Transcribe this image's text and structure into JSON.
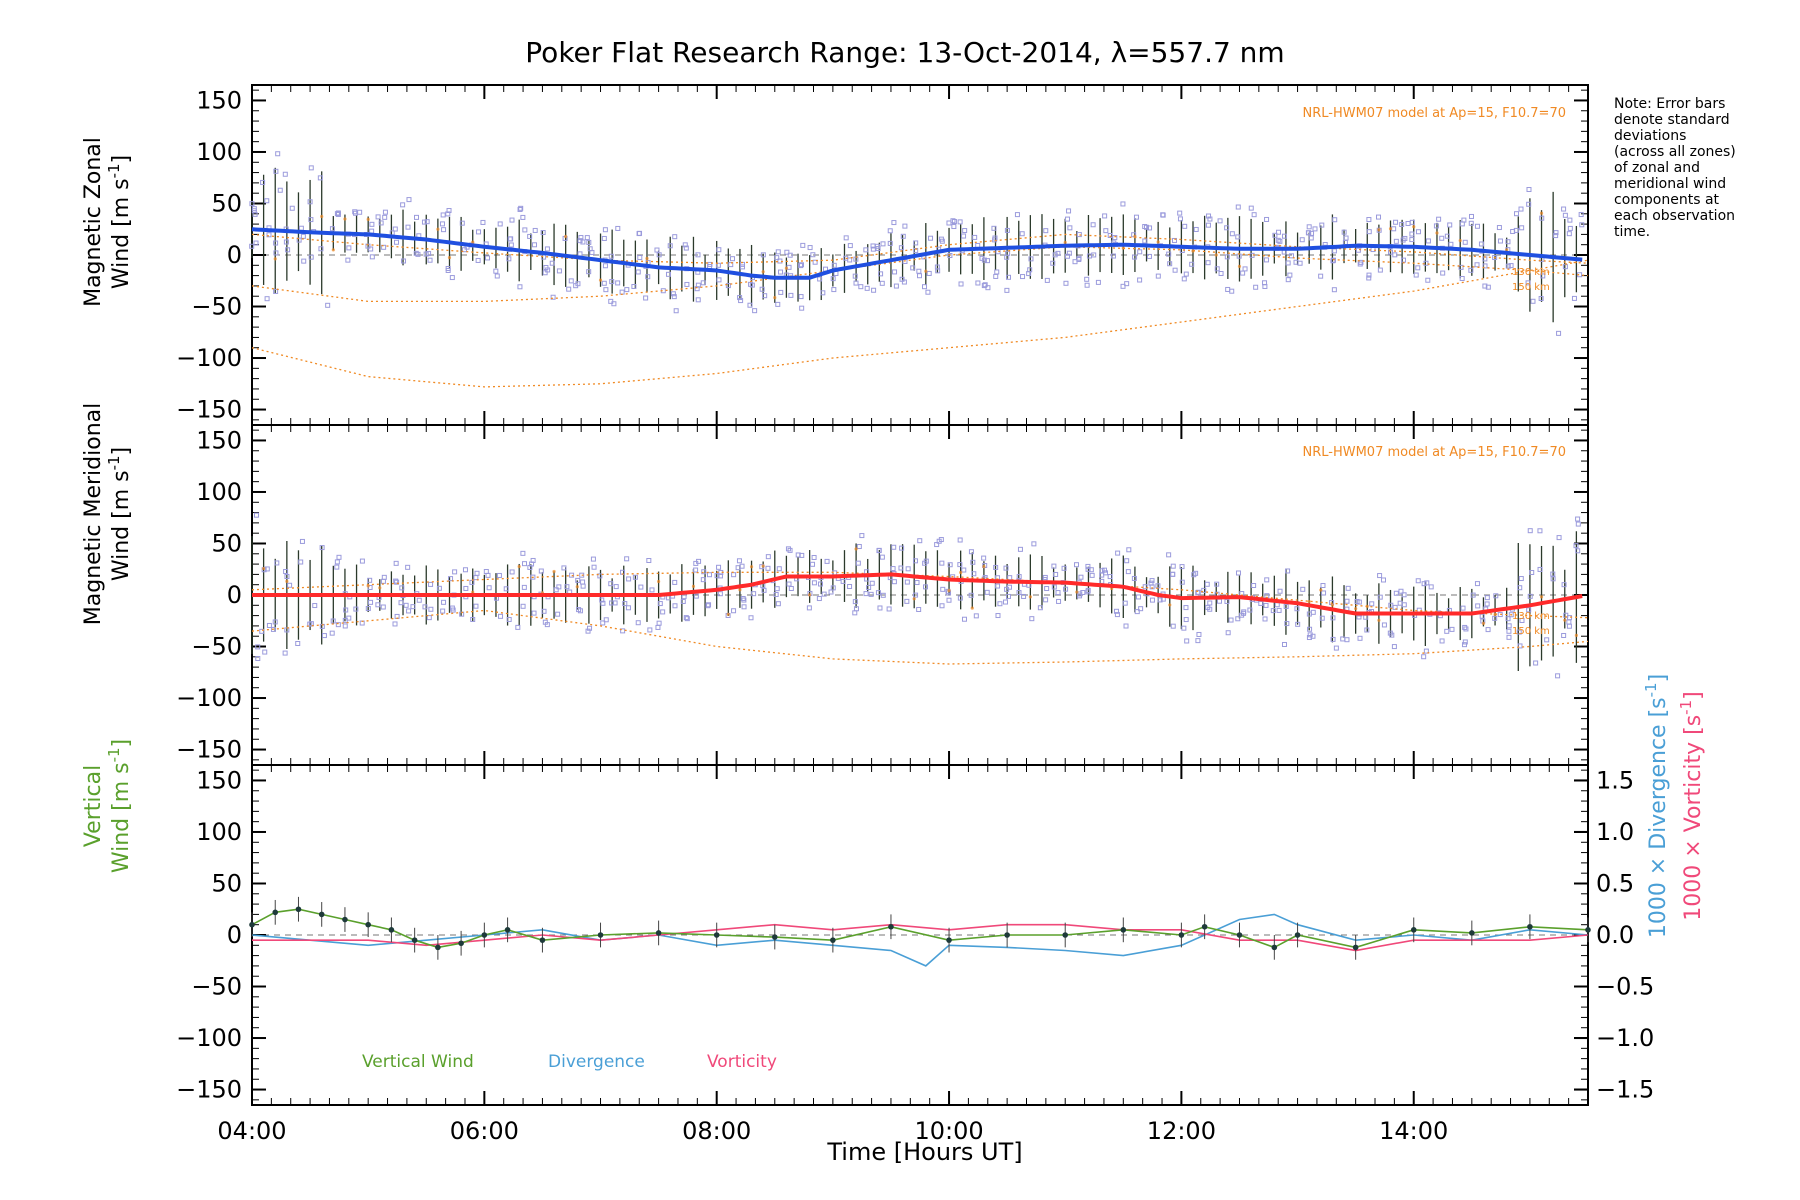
{
  "title": "Poker Flat Research Range: 13-Oct-2014, λ=557.7 nm",
  "note": [
    "Note: Error bars",
    "denote standard",
    "deviations",
    "(across all zones)",
    "of zonal and",
    "meridional wind",
    "components at",
    "each observation",
    "time."
  ],
  "model_label": "NRL-HWM07 model at Ap=15, F10.7=70",
  "altitude_labels": [
    "130 km",
    "150 km"
  ],
  "x_axis": {
    "label": "Time [Hours UT]",
    "ticks": [
      "04:00",
      "06:00",
      "08:00",
      "10:00",
      "12:00",
      "14:00"
    ]
  },
  "y_ticks": [
    "150",
    "100",
    "50",
    "0",
    "−50",
    "−100",
    "−150"
  ],
  "right_ticks": [
    "1.5",
    "1.0",
    "0.5",
    "0.0",
    "−0.5",
    "−1.0",
    "−1.5"
  ],
  "panels": {
    "zonal": {
      "ylabel_line1": "Magnetic Zonal",
      "ylabel_line2_pre": "Wind [m s",
      "ylabel_sup": "-1",
      "ylabel_post": "]"
    },
    "meridional": {
      "ylabel_line1": "Magnetic Meridional",
      "ylabel_line2_pre": "Wind [m s",
      "ylabel_sup": "-1",
      "ylabel_post": "]"
    },
    "vertical": {
      "ylabel_line1": "Vertical",
      "ylabel_line2_pre": "Wind [m s",
      "ylabel_sup": "-1",
      "ylabel_post": "]",
      "right_label1_pre": "1000 × Divergence [s",
      "right_label2_pre": "1000 × Vorticity [s",
      "right_sup": "-1",
      "right_post": "]"
    }
  },
  "legend": [
    "Vertical Wind",
    "Divergence",
    "Vorticity"
  ],
  "colors": {
    "zonal": "#1f4fe0",
    "meridional": "#ff2a2a",
    "vertical": "#5aa02c",
    "divergence": "#4a9fd6",
    "vorticity": "#f0497a",
    "model": "#f08a24",
    "samples": "#9b9bdc",
    "errorbar": "#2b3a2b"
  },
  "chart_data": [
    {
      "type": "line",
      "panel": "zonal",
      "xlabel": "",
      "ylabel": "Magnetic Zonal Wind [m s-1]",
      "xlim": [
        4.0,
        15.5
      ],
      "ylim": [
        -165,
        165
      ],
      "series": [
        {
          "role": "measured",
          "x": [
            4.0,
            4.5,
            5.0,
            5.5,
            6.0,
            6.5,
            7.0,
            7.5,
            8.0,
            8.3,
            8.5,
            8.8,
            9.0,
            9.5,
            10.0,
            10.5,
            11.0,
            11.5,
            12.0,
            12.5,
            13.0,
            13.5,
            14.0,
            14.5,
            15.0,
            15.5
          ],
          "y": [
            25,
            22,
            20,
            15,
            8,
            2,
            -5,
            -12,
            -15,
            -20,
            -22,
            -22,
            -15,
            -5,
            5,
            7,
            9,
            10,
            8,
            6,
            6,
            9,
            8,
            5,
            0,
            -5
          ]
        },
        {
          "role": "model",
          "x": [
            4.0,
            5.0,
            6.0,
            7.0,
            8.0,
            9.0,
            10.0,
            11.0,
            12.0,
            13.0,
            14.0,
            15.0,
            15.5
          ],
          "y": [
            20,
            10,
            2,
            -5,
            -8,
            -5,
            10,
            20,
            15,
            8,
            3,
            -5,
            -8
          ]
        },
        {
          "role": "model",
          "x": [
            4.0,
            5.0,
            6.0,
            7.0,
            8.0,
            9.0,
            10.0,
            11.0,
            12.0,
            13.0,
            14.0,
            15.0,
            15.5
          ],
          "y": [
            -30,
            -45,
            -45,
            -40,
            -30,
            -15,
            0,
            8,
            5,
            -3,
            -8,
            -15,
            -20
          ]
        },
        {
          "role": "model",
          "x": [
            4.0,
            5.0,
            6.0,
            7.0,
            8.0,
            9.0,
            10.0,
            11.0,
            12.0,
            13.0,
            14.0,
            15.0,
            15.5
          ],
          "y": [
            -90,
            -118,
            -128,
            -125,
            -115,
            -100,
            -90,
            -80,
            -65,
            -50,
            -35,
            -15,
            -5
          ]
        }
      ]
    },
    {
      "type": "line",
      "panel": "meridional",
      "xlabel": "",
      "ylabel": "Magnetic Meridional Wind [m s-1]",
      "xlim": [
        4.0,
        15.5
      ],
      "ylim": [
        -165,
        165
      ],
      "series": [
        {
          "role": "measured",
          "x": [
            4.0,
            4.5,
            5.0,
            5.5,
            6.0,
            6.5,
            7.0,
            7.5,
            8.0,
            8.3,
            8.6,
            9.0,
            9.5,
            10.0,
            10.5,
            11.0,
            11.5,
            11.8,
            12.0,
            12.5,
            13.0,
            13.5,
            14.0,
            14.5,
            15.0,
            15.5
          ],
          "y": [
            0,
            0,
            0,
            0,
            0,
            0,
            0,
            0,
            5,
            10,
            18,
            18,
            20,
            15,
            13,
            12,
            8,
            0,
            -3,
            -2,
            -8,
            -18,
            -18,
            -18,
            -10,
            0
          ]
        },
        {
          "role": "model",
          "x": [
            4.0,
            5.0,
            6.0,
            7.0,
            8.0,
            9.0,
            10.0,
            11.0,
            12.0,
            13.0,
            14.0,
            15.0,
            15.5
          ],
          "y": [
            5,
            10,
            15,
            20,
            22,
            22,
            18,
            12,
            5,
            -5,
            -15,
            -20,
            -22
          ]
        },
        {
          "role": "model",
          "x": [
            4.0,
            5.0,
            6.0,
            7.0,
            8.0,
            9.0,
            10.0,
            11.0,
            12.0,
            13.0,
            14.0,
            15.0,
            15.5
          ],
          "y": [
            -35,
            -25,
            -15,
            -30,
            -50,
            -62,
            -67,
            -65,
            -62,
            -60,
            -57,
            -50,
            -45
          ]
        }
      ]
    },
    {
      "type": "line",
      "panel": "vertical",
      "xlabel": "Time [Hours UT]",
      "ylabel": "Vertical Wind [m s-1]",
      "xlim": [
        4.0,
        15.5
      ],
      "ylim": [
        -165,
        165
      ],
      "y2lim": [
        -1.65,
        1.65
      ],
      "series": [
        {
          "name": "Vertical Wind",
          "x": [
            4.0,
            4.2,
            4.4,
            4.6,
            4.8,
            5.0,
            5.2,
            5.4,
            5.6,
            5.8,
            6.0,
            6.2,
            6.5,
            7.0,
            7.5,
            8.0,
            8.5,
            9.0,
            9.5,
            10.0,
            10.5,
            11.0,
            11.5,
            12.0,
            12.2,
            12.5,
            12.8,
            13.0,
            13.5,
            14.0,
            14.5,
            15.0,
            15.5
          ],
          "y": [
            10,
            22,
            25,
            20,
            15,
            10,
            5,
            -5,
            -12,
            -8,
            0,
            5,
            -5,
            0,
            2,
            0,
            -2,
            -5,
            8,
            -5,
            0,
            0,
            5,
            0,
            8,
            0,
            -12,
            0,
            -12,
            5,
            2,
            8,
            5
          ]
        },
        {
          "name": "Divergence",
          "axis": "right",
          "x": [
            4.0,
            4.5,
            5.0,
            5.5,
            6.0,
            6.5,
            7.0,
            7.5,
            8.0,
            8.5,
            9.0,
            9.5,
            9.8,
            10.0,
            10.5,
            11.0,
            11.5,
            12.0,
            12.5,
            12.8,
            13.0,
            13.5,
            14.0,
            14.5,
            15.0,
            15.5
          ],
          "y": [
            0.0,
            -0.05,
            -0.1,
            -0.05,
            0.0,
            0.05,
            -0.05,
            0.0,
            -0.1,
            -0.05,
            -0.1,
            -0.15,
            -0.3,
            -0.1,
            -0.12,
            -0.15,
            -0.2,
            -0.1,
            0.15,
            0.2,
            0.1,
            -0.05,
            0.0,
            -0.05,
            0.05,
            0.0
          ]
        },
        {
          "name": "Vorticity",
          "axis": "right",
          "x": [
            4.0,
            4.5,
            5.0,
            5.5,
            6.0,
            6.5,
            7.0,
            7.5,
            8.0,
            8.5,
            9.0,
            9.5,
            10.0,
            10.5,
            11.0,
            11.5,
            12.0,
            12.5,
            13.0,
            13.5,
            14.0,
            14.5,
            15.0,
            15.5
          ],
          "y": [
            -0.05,
            -0.05,
            -0.05,
            -0.1,
            -0.05,
            0.0,
            -0.05,
            0.0,
            0.05,
            0.1,
            0.05,
            0.1,
            0.05,
            0.1,
            0.1,
            0.05,
            0.05,
            -0.05,
            -0.05,
            -0.15,
            -0.05,
            -0.05,
            -0.05,
            0.0
          ]
        }
      ]
    }
  ]
}
